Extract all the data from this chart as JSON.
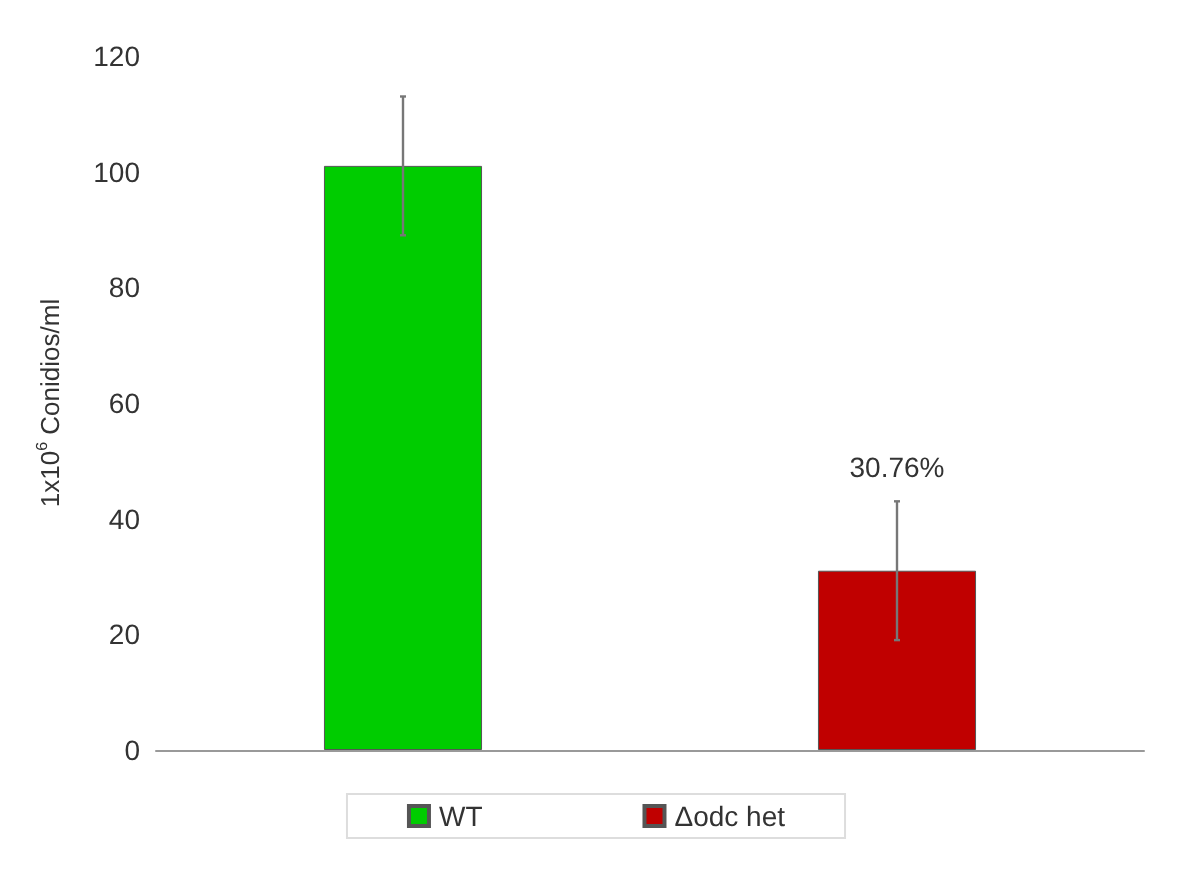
{
  "chart_data": {
    "type": "bar",
    "ylabel": "1x10$^{6}$ Conidios/ml",
    "categories": [
      null,
      null
    ],
    "series": [
      {
        "name": "WT",
        "color": "#00cc00",
        "values": [
          101,
          null
        ],
        "errors": [
          [
            89,
            113
          ],
          null
        ]
      },
      {
        "name": "Δodc het",
        "color": "#c00000",
        "values": [
          null,
          31
        ],
        "errors": [
          null,
          [
            19,
            43
          ]
        ]
      }
    ],
    "ylim": [
      0,
      120
    ],
    "yticks": [
      0,
      20,
      40,
      60,
      80,
      100,
      120
    ],
    "grid": false,
    "legend": "bottom",
    "annotations": [
      "30.76%"
    ]
  }
}
